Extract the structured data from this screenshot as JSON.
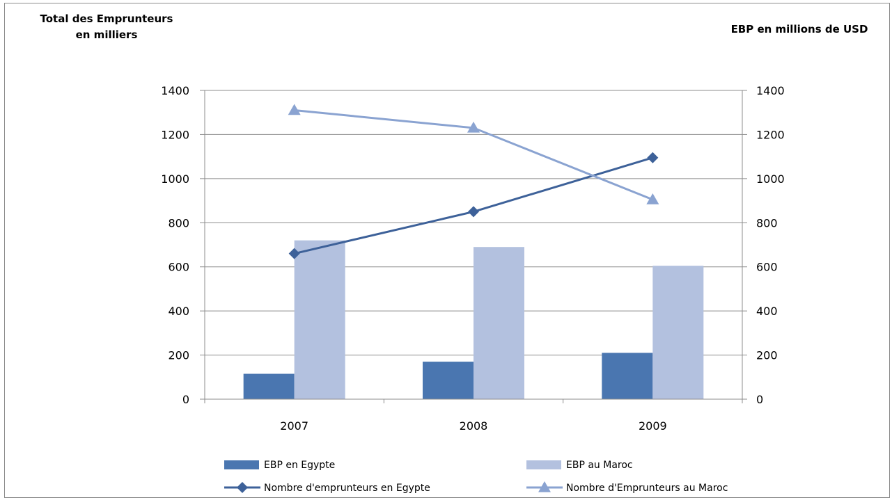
{
  "chart_data": {
    "type": "bar",
    "left_axis_title": "Total des Emprunteurs\nen milliers",
    "right_axis_title": "EBP en millions de USD",
    "categories": [
      "2007",
      "2008",
      "2009"
    ],
    "ylim": [
      0,
      1400
    ],
    "yticks": [
      0,
      200,
      400,
      600,
      800,
      1000,
      1200,
      1400
    ],
    "y2lim": [
      0,
      1400
    ],
    "y2ticks": [
      0,
      200,
      400,
      600,
      800,
      1000,
      1200,
      1400
    ],
    "grid": true,
    "legend_position": "bottom",
    "series": [
      {
        "name": "EBP en Egypte",
        "kind": "bar",
        "axis": "right",
        "color": "#4a76b0",
        "values": [
          115,
          170,
          210
        ]
      },
      {
        "name": "EBP au Maroc",
        "kind": "bar",
        "axis": "right",
        "color": "#b3c1df",
        "values": [
          720,
          690,
          605
        ]
      },
      {
        "name": "Nombre d'emprunteurs en Egypte",
        "kind": "line",
        "marker": "diamond",
        "axis": "left",
        "color": "#3d6199",
        "values": [
          660,
          850,
          1095
        ]
      },
      {
        "name": "Nombre d'Emprunteurs au Maroc",
        "kind": "line",
        "marker": "triangle",
        "axis": "left",
        "color": "#8aa3d1",
        "values": [
          1310,
          1230,
          905
        ]
      }
    ]
  }
}
